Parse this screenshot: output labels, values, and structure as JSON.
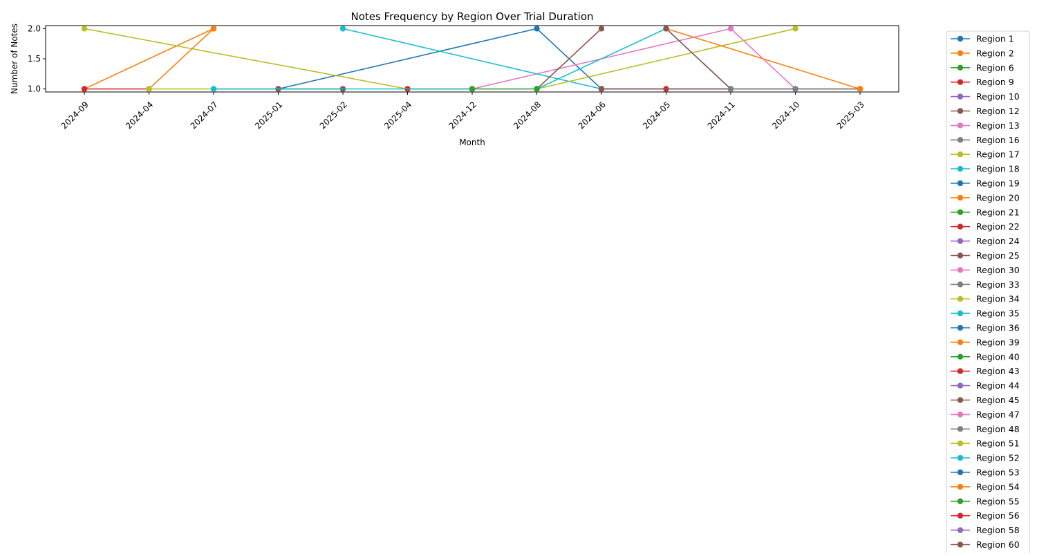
{
  "chart_data": {
    "type": "line",
    "title": "Notes Frequency by Region Over Trial Duration",
    "xlabel": "Month",
    "ylabel": "Number of Notes",
    "categories": [
      "2024-09",
      "2024-04",
      "2024-07",
      "2025-01",
      "2025-02",
      "2025-04",
      "2024-12",
      "2024-08",
      "2024-06",
      "2024-05",
      "2024-11",
      "2024-10",
      "2025-03"
    ],
    "ylim": [
      0.95,
      2.05
    ],
    "yticks": [
      "1.0",
      "1.5",
      "2.0"
    ],
    "grid": false,
    "legend_position": "outside right",
    "palette": [
      "#1f77b4",
      "#ff7f0e",
      "#2ca02c",
      "#d62728",
      "#9467bd",
      "#8c564b",
      "#e377c2",
      "#7f7f7f",
      "#bcbd22",
      "#17becf"
    ],
    "legend": [
      "Region 1",
      "Region 2",
      "Region 6",
      "Region 9",
      "Region 10",
      "Region 12",
      "Region 13",
      "Region 16",
      "Region 17",
      "Region 18",
      "Region 19",
      "Region 20",
      "Region 21",
      "Region 22",
      "Region 24",
      "Region 25",
      "Region 30",
      "Region 33",
      "Region 34",
      "Region 35",
      "Region 36",
      "Region 39",
      "Region 40",
      "Region 43",
      "Region 44",
      "Region 45",
      "Region 47",
      "Region 48",
      "Region 51",
      "Region 52",
      "Region 53",
      "Region 54",
      "Region 55",
      "Region 56",
      "Region 58",
      "Region 60"
    ],
    "series": [
      {
        "name": "Region 1",
        "color": "#1f77b4",
        "points": [
          [
            "2025-01",
            1
          ],
          [
            "2024-08",
            2
          ],
          [
            "2024-06",
            1
          ]
        ]
      },
      {
        "name": "Region 2",
        "color": "#ff7f0e",
        "points": [
          [
            "2024-09",
            1
          ],
          [
            "2024-07",
            2
          ]
        ]
      },
      {
        "name": "Region 9",
        "color": "#d62728",
        "points": [
          [
            "2024-09",
            1
          ],
          [
            "2024-04",
            1
          ]
        ]
      },
      {
        "name": "Region 10",
        "color": "#9467bd",
        "points": [
          [
            "2024-07",
            1
          ],
          [
            "2025-02",
            1
          ]
        ]
      },
      {
        "name": "Region 12",
        "color": "#8c564b",
        "points": [
          [
            "2025-01",
            1
          ],
          [
            "2025-02",
            1
          ]
        ]
      },
      {
        "name": "Region 13",
        "color": "#e377c2",
        "points": [
          [
            "2024-12",
            1
          ],
          [
            "2024-11",
            2
          ],
          [
            "2024-10",
            1
          ]
        ]
      },
      {
        "name": "Region 17",
        "color": "#bcbd22",
        "points": [
          [
            "2024-09",
            2
          ],
          [
            "2025-04",
            1
          ]
        ]
      },
      {
        "name": "Region 18",
        "color": "#17becf",
        "points": [
          [
            "2025-02",
            2
          ],
          [
            "2024-06",
            1
          ]
        ]
      },
      {
        "name": "Region 20",
        "color": "#ff7f0e",
        "points": [
          [
            "2024-04",
            1
          ],
          [
            "2024-07",
            2
          ]
        ]
      },
      {
        "name": "Region 22",
        "color": "#d62728",
        "points": [
          [
            "2025-04",
            1
          ],
          [
            "2024-12",
            1
          ]
        ]
      },
      {
        "name": "Region 25",
        "color": "#8c564b",
        "points": [
          [
            "2024-08",
            1
          ],
          [
            "2024-06",
            2
          ]
        ]
      },
      {
        "name": "Region 34",
        "color": "#bcbd22",
        "points": [
          [
            "2024-08",
            1
          ],
          [
            "2024-10",
            2
          ]
        ]
      },
      {
        "name": "Region 35",
        "color": "#17becf",
        "points": [
          [
            "2024-08",
            1
          ],
          [
            "2024-05",
            2
          ],
          [
            "2024-11",
            1
          ]
        ]
      },
      {
        "name": "Region 39",
        "color": "#ff7f0e",
        "points": [
          [
            "2024-05",
            2
          ],
          [
            "2025-03",
            1
          ]
        ]
      },
      {
        "name": "Region 43",
        "color": "#d62728",
        "points": [
          [
            "2024-06",
            1
          ],
          [
            "2024-05",
            1
          ]
        ]
      },
      {
        "name": "Region 45",
        "color": "#8c564b",
        "points": [
          [
            "2024-05",
            2
          ],
          [
            "2024-11",
            1
          ]
        ]
      },
      {
        "name": "Region 47",
        "color": "#e377c2",
        "points": [
          [
            "2024-10",
            1
          ],
          [
            "2025-03",
            1
          ]
        ]
      },
      {
        "name": "Region 51",
        "color": "#bcbd22",
        "points": [
          [
            "2024-04",
            1
          ],
          [
            "2024-07",
            1
          ]
        ]
      },
      {
        "name": "Region 52",
        "color": "#17becf",
        "points": [
          [
            "2024-07",
            1
          ],
          [
            "2024-12",
            1
          ]
        ]
      },
      {
        "name": "Region 53",
        "color": "#1f77b4",
        "points": [
          [
            "2024-06",
            1
          ],
          [
            "2024-11",
            1
          ]
        ]
      },
      {
        "name": "Region 55",
        "color": "#2ca02c",
        "points": [
          [
            "2024-12",
            1
          ],
          [
            "2024-08",
            1
          ]
        ]
      },
      {
        "name": "Region 58",
        "color": "#9467bd",
        "points": [
          [
            "2024-06",
            1
          ],
          [
            "2024-10",
            1
          ]
        ]
      },
      {
        "name": "Region 60",
        "color": "#8c564b",
        "points": [
          [
            "2024-06",
            1
          ],
          [
            "2025-03",
            1
          ]
        ]
      },
      {
        "name": "Region 48",
        "color": "#7f7f7f",
        "points": [
          [
            "2024-11",
            1
          ],
          [
            "2025-03",
            1
          ]
        ]
      },
      {
        "name": "Region 33",
        "color": "#7f7f7f",
        "points": [
          [
            "2024-10",
            1
          ],
          [
            "2025-03",
            1
          ]
        ]
      },
      {
        "name": "Region 54",
        "color": "#ff7f0e",
        "points": [
          [
            "2025-03",
            1
          ]
        ]
      }
    ]
  }
}
